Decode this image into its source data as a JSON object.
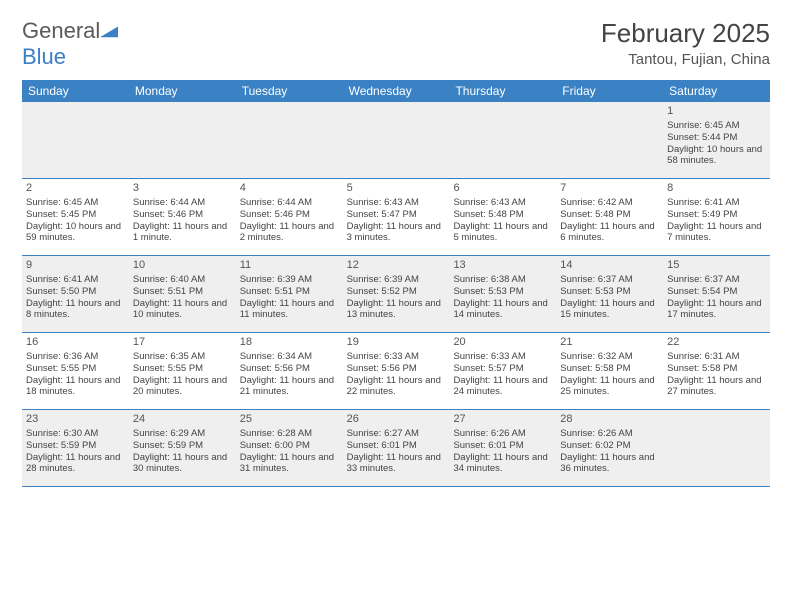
{
  "logo": {
    "general": "General",
    "blue": "Blue"
  },
  "header": {
    "month": "February 2025",
    "location": "Tantou, Fujian, China"
  },
  "dow": [
    "Sunday",
    "Monday",
    "Tuesday",
    "Wednesday",
    "Thursday",
    "Friday",
    "Saturday"
  ],
  "colors": {
    "header_bar": "#3b82c4",
    "divider": "#3b82c4",
    "alt_row": "#efefef",
    "text": "#444444",
    "logo_blue": "#3b7fc4"
  },
  "weeks": [
    [
      {
        "n": "",
        "sr": "",
        "ss": "",
        "dl": ""
      },
      {
        "n": "",
        "sr": "",
        "ss": "",
        "dl": ""
      },
      {
        "n": "",
        "sr": "",
        "ss": "",
        "dl": ""
      },
      {
        "n": "",
        "sr": "",
        "ss": "",
        "dl": ""
      },
      {
        "n": "",
        "sr": "",
        "ss": "",
        "dl": ""
      },
      {
        "n": "",
        "sr": "",
        "ss": "",
        "dl": ""
      },
      {
        "n": "1",
        "sr": "Sunrise: 6:45 AM",
        "ss": "Sunset: 5:44 PM",
        "dl": "Daylight: 10 hours and 58 minutes."
      }
    ],
    [
      {
        "n": "2",
        "sr": "Sunrise: 6:45 AM",
        "ss": "Sunset: 5:45 PM",
        "dl": "Daylight: 10 hours and 59 minutes."
      },
      {
        "n": "3",
        "sr": "Sunrise: 6:44 AM",
        "ss": "Sunset: 5:46 PM",
        "dl": "Daylight: 11 hours and 1 minute."
      },
      {
        "n": "4",
        "sr": "Sunrise: 6:44 AM",
        "ss": "Sunset: 5:46 PM",
        "dl": "Daylight: 11 hours and 2 minutes."
      },
      {
        "n": "5",
        "sr": "Sunrise: 6:43 AM",
        "ss": "Sunset: 5:47 PM",
        "dl": "Daylight: 11 hours and 3 minutes."
      },
      {
        "n": "6",
        "sr": "Sunrise: 6:43 AM",
        "ss": "Sunset: 5:48 PM",
        "dl": "Daylight: 11 hours and 5 minutes."
      },
      {
        "n": "7",
        "sr": "Sunrise: 6:42 AM",
        "ss": "Sunset: 5:48 PM",
        "dl": "Daylight: 11 hours and 6 minutes."
      },
      {
        "n": "8",
        "sr": "Sunrise: 6:41 AM",
        "ss": "Sunset: 5:49 PM",
        "dl": "Daylight: 11 hours and 7 minutes."
      }
    ],
    [
      {
        "n": "9",
        "sr": "Sunrise: 6:41 AM",
        "ss": "Sunset: 5:50 PM",
        "dl": "Daylight: 11 hours and 8 minutes."
      },
      {
        "n": "10",
        "sr": "Sunrise: 6:40 AM",
        "ss": "Sunset: 5:51 PM",
        "dl": "Daylight: 11 hours and 10 minutes."
      },
      {
        "n": "11",
        "sr": "Sunrise: 6:39 AM",
        "ss": "Sunset: 5:51 PM",
        "dl": "Daylight: 11 hours and 11 minutes."
      },
      {
        "n": "12",
        "sr": "Sunrise: 6:39 AM",
        "ss": "Sunset: 5:52 PM",
        "dl": "Daylight: 11 hours and 13 minutes."
      },
      {
        "n": "13",
        "sr": "Sunrise: 6:38 AM",
        "ss": "Sunset: 5:53 PM",
        "dl": "Daylight: 11 hours and 14 minutes."
      },
      {
        "n": "14",
        "sr": "Sunrise: 6:37 AM",
        "ss": "Sunset: 5:53 PM",
        "dl": "Daylight: 11 hours and 15 minutes."
      },
      {
        "n": "15",
        "sr": "Sunrise: 6:37 AM",
        "ss": "Sunset: 5:54 PM",
        "dl": "Daylight: 11 hours and 17 minutes."
      }
    ],
    [
      {
        "n": "16",
        "sr": "Sunrise: 6:36 AM",
        "ss": "Sunset: 5:55 PM",
        "dl": "Daylight: 11 hours and 18 minutes."
      },
      {
        "n": "17",
        "sr": "Sunrise: 6:35 AM",
        "ss": "Sunset: 5:55 PM",
        "dl": "Daylight: 11 hours and 20 minutes."
      },
      {
        "n": "18",
        "sr": "Sunrise: 6:34 AM",
        "ss": "Sunset: 5:56 PM",
        "dl": "Daylight: 11 hours and 21 minutes."
      },
      {
        "n": "19",
        "sr": "Sunrise: 6:33 AM",
        "ss": "Sunset: 5:56 PM",
        "dl": "Daylight: 11 hours and 22 minutes."
      },
      {
        "n": "20",
        "sr": "Sunrise: 6:33 AM",
        "ss": "Sunset: 5:57 PM",
        "dl": "Daylight: 11 hours and 24 minutes."
      },
      {
        "n": "21",
        "sr": "Sunrise: 6:32 AM",
        "ss": "Sunset: 5:58 PM",
        "dl": "Daylight: 11 hours and 25 minutes."
      },
      {
        "n": "22",
        "sr": "Sunrise: 6:31 AM",
        "ss": "Sunset: 5:58 PM",
        "dl": "Daylight: 11 hours and 27 minutes."
      }
    ],
    [
      {
        "n": "23",
        "sr": "Sunrise: 6:30 AM",
        "ss": "Sunset: 5:59 PM",
        "dl": "Daylight: 11 hours and 28 minutes."
      },
      {
        "n": "24",
        "sr": "Sunrise: 6:29 AM",
        "ss": "Sunset: 5:59 PM",
        "dl": "Daylight: 11 hours and 30 minutes."
      },
      {
        "n": "25",
        "sr": "Sunrise: 6:28 AM",
        "ss": "Sunset: 6:00 PM",
        "dl": "Daylight: 11 hours and 31 minutes."
      },
      {
        "n": "26",
        "sr": "Sunrise: 6:27 AM",
        "ss": "Sunset: 6:01 PM",
        "dl": "Daylight: 11 hours and 33 minutes."
      },
      {
        "n": "27",
        "sr": "Sunrise: 6:26 AM",
        "ss": "Sunset: 6:01 PM",
        "dl": "Daylight: 11 hours and 34 minutes."
      },
      {
        "n": "28",
        "sr": "Sunrise: 6:26 AM",
        "ss": "Sunset: 6:02 PM",
        "dl": "Daylight: 11 hours and 36 minutes."
      },
      {
        "n": "",
        "sr": "",
        "ss": "",
        "dl": ""
      }
    ]
  ]
}
